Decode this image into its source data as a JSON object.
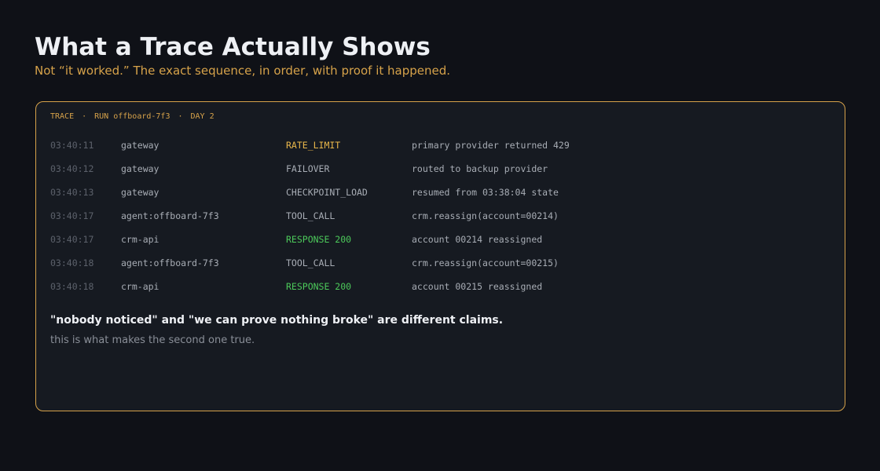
{
  "header": {
    "title": "What a Trace Actually Shows",
    "subtitle": "Not “it worked.” The exact sequence, in order, with proof it happened."
  },
  "trace": {
    "label": "TRACE",
    "separator": "·",
    "run": "RUN offboard-7f3",
    "day": "DAY 2",
    "rows": [
      [
        "03:40:11",
        "gateway",
        "RATE_LIMIT",
        "primary provider returned 429"
      ],
      [
        "03:40:12",
        "gateway",
        "FAILOVER",
        "routed to backup provider"
      ],
      [
        "03:40:13",
        "gateway",
        "CHECKPOINT_LOAD",
        "resumed from 03:38:04 state"
      ],
      [
        "03:40:17",
        "agent:offboard-7f3",
        "TOOL_CALL",
        "crm.reassign(account=00214)"
      ],
      [
        "03:40:17",
        "crm-api",
        "RESPONSE 200",
        "account 00214 reassigned"
      ],
      [
        "03:40:18",
        "agent:offboard-7f3",
        "TOOL_CALL",
        "crm.reassign(account=00215)"
      ],
      [
        "03:40:18",
        "crm-api",
        "RESPONSE 200",
        "account 00215 reassigned"
      ]
    ],
    "event_colors": [
      "#e8b64a",
      "#a8adb5",
      "#a8adb5",
      "#a8adb5",
      "#4cc95a",
      "#a8adb5",
      "#4cc95a"
    ],
    "claim": "\"nobody noticed\" and \"we can prove nothing broke\" are different claims.",
    "note": "this is what makes the second one true."
  }
}
